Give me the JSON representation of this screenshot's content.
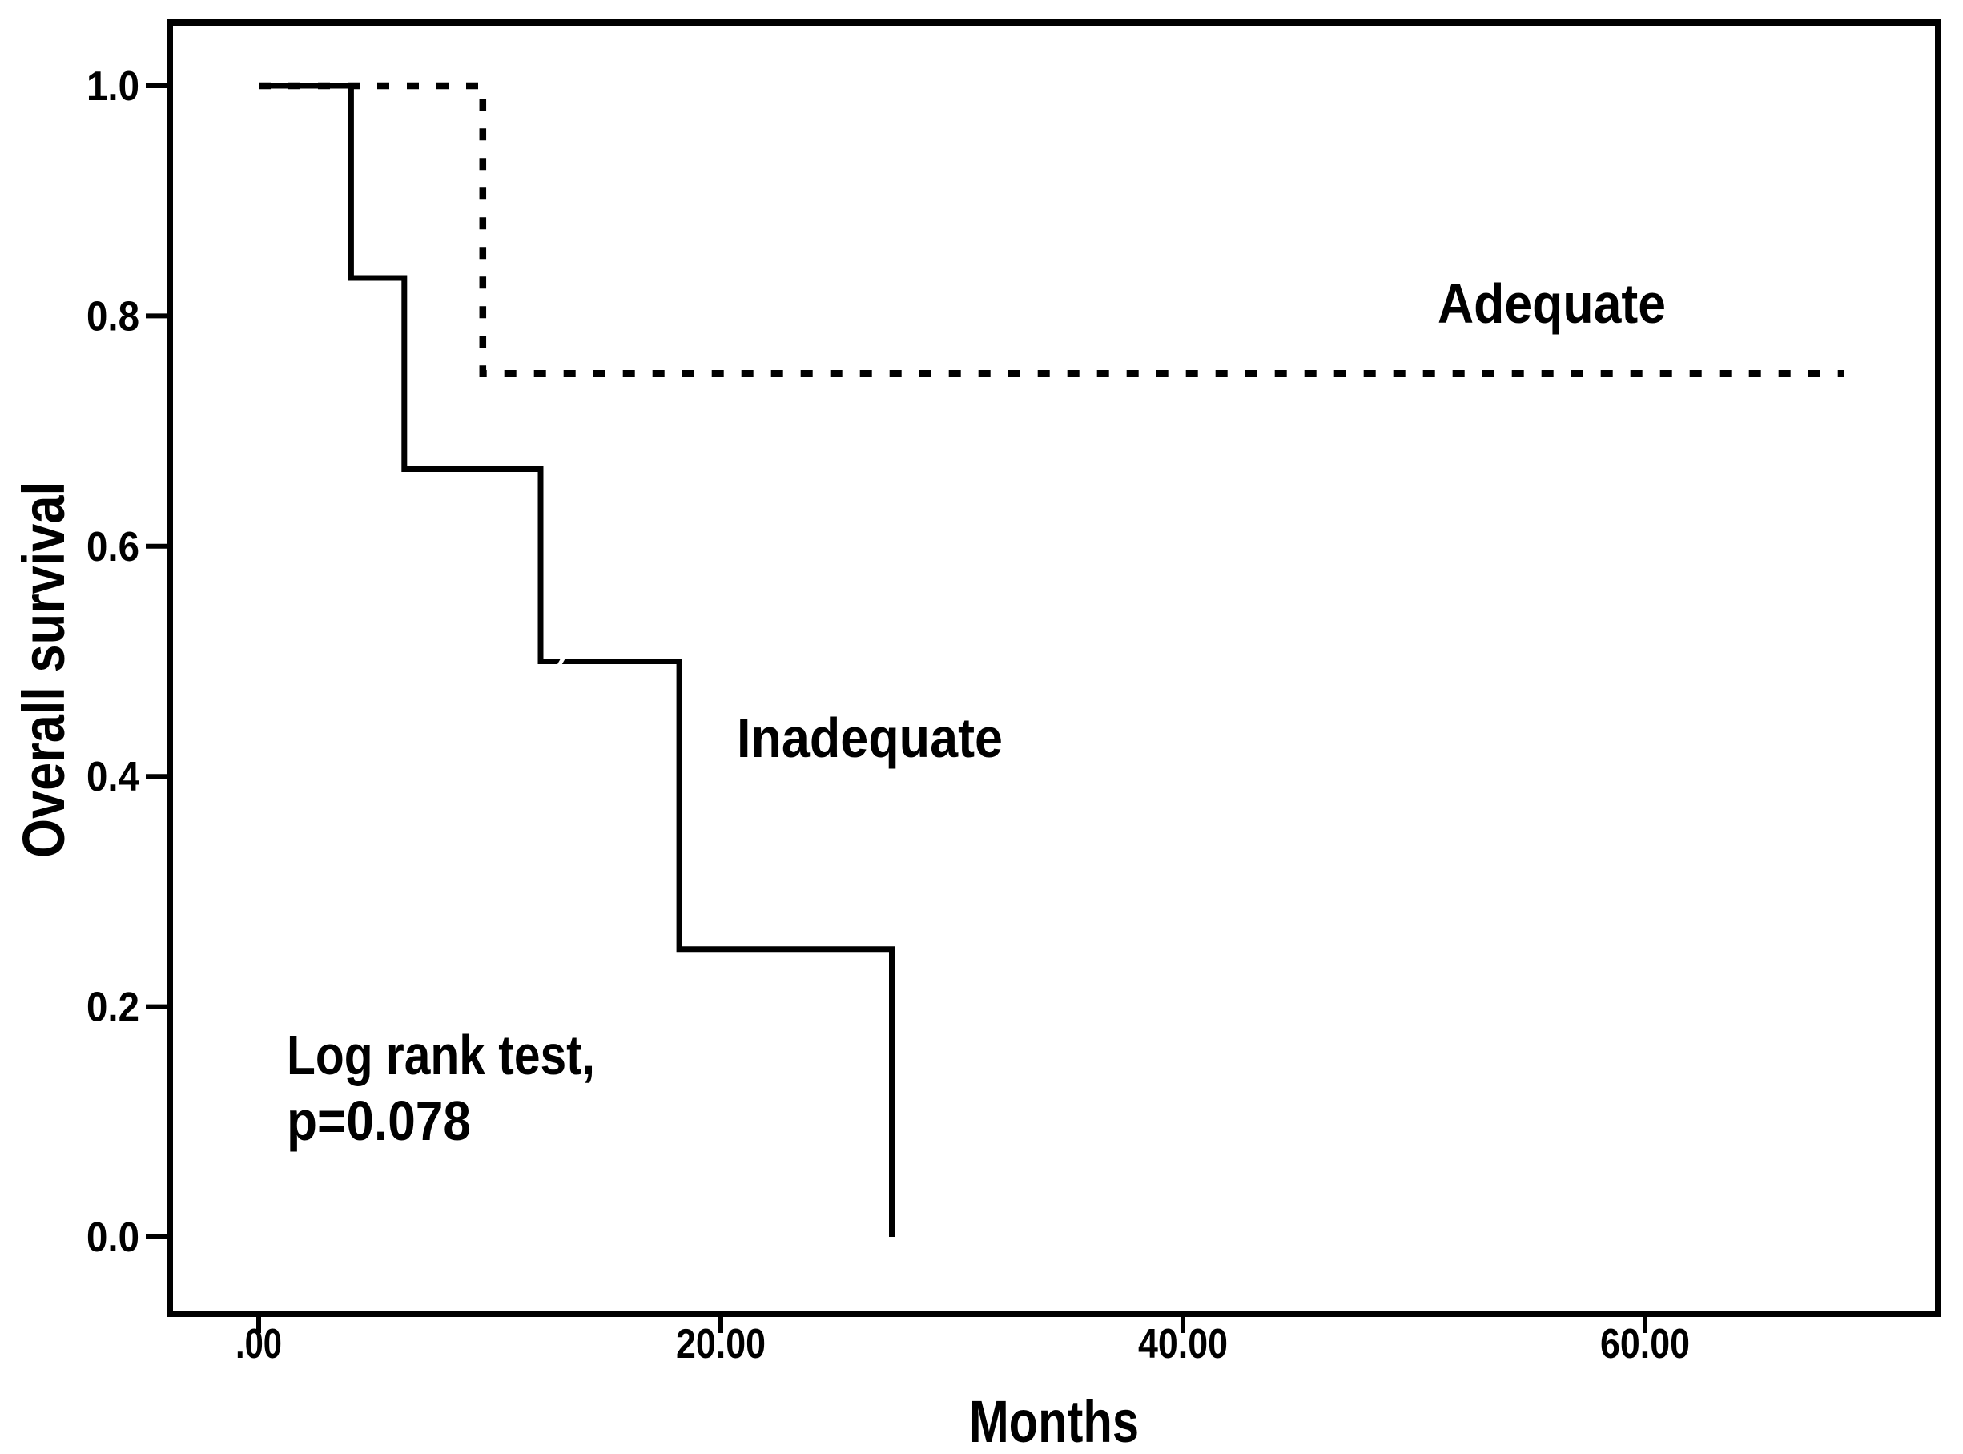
{
  "figure": {
    "background": "#ffffff",
    "line_color": "#000000",
    "annotations": {
      "adequate_label": "Adequate",
      "inadequate_label": "Inadequate",
      "logrank_line1": "Log rank test,",
      "logrank_line2": "p=0.078"
    }
  },
  "chart_data": {
    "type": "line",
    "subtype": "kaplan-meier-step-curves",
    "title": "",
    "xlabel": "Months",
    "ylabel": "Overall survival",
    "xlim": [
      -3.9,
      72.7
    ],
    "ylim": [
      -0.07,
      1.06
    ],
    "grid": false,
    "legend_position": "inline-text-labels",
    "x_ticks": [
      {
        "value": 0,
        "label": ".00"
      },
      {
        "value": 20,
        "label": "20.00"
      },
      {
        "value": 40,
        "label": "40.00"
      },
      {
        "value": 60,
        "label": "60.00"
      }
    ],
    "y_ticks": [
      {
        "value": 0.0,
        "label": "0.0"
      },
      {
        "value": 0.2,
        "label": "0.2"
      },
      {
        "value": 0.4,
        "label": "0.4"
      },
      {
        "value": 0.6,
        "label": "0.6"
      },
      {
        "value": 0.8,
        "label": "0.8"
      },
      {
        "value": 1.0,
        "label": "1.0"
      }
    ],
    "series": [
      {
        "name": "Adequate",
        "style": "dotted",
        "color": "#000000",
        "points": [
          [
            0,
            1.0
          ],
          [
            9.7,
            1.0
          ],
          [
            9.7,
            0.75
          ],
          [
            68.6,
            0.75
          ]
        ]
      },
      {
        "name": "Inadequate",
        "style": "solid",
        "color": "#000000",
        "points": [
          [
            0,
            1.0
          ],
          [
            4.0,
            1.0
          ],
          [
            4.0,
            0.833
          ],
          [
            6.3,
            0.833
          ],
          [
            6.3,
            0.667
          ],
          [
            12.2,
            0.667
          ],
          [
            12.2,
            0.5
          ],
          [
            18.2,
            0.5
          ],
          [
            18.2,
            0.25
          ],
          [
            27.4,
            0.25
          ],
          [
            27.4,
            0.0
          ]
        ]
      }
    ],
    "censor_marks": [
      {
        "series": "Inadequate",
        "x": 13.1,
        "y": 0.5
      }
    ],
    "statistics_annotation": "Log rank test, p=0.078"
  }
}
